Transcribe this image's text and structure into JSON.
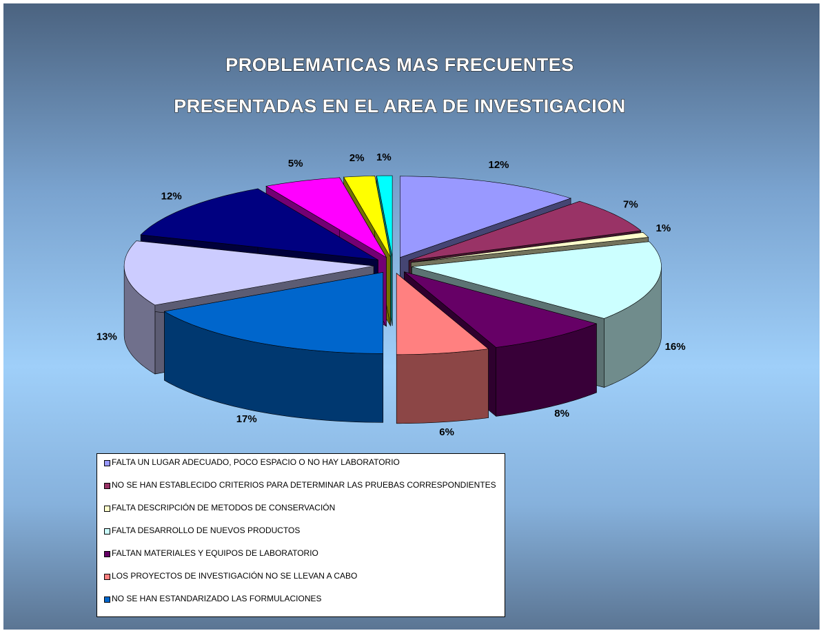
{
  "chart_data": {
    "type": "pie3d",
    "title": [
      "PROBLEMATICAS MAS FRECUENTES",
      "PRESENTADAS EN EL AREA DE INVESTIGACION"
    ],
    "categories": [
      "FALTA UN LUGAR ADECUADO, POCO ESPACIO O NO HAY LABORATORIO",
      "NO SE HAN ESTABLECIDO CRITERIOS PARA DETERMINAR LAS PRUEBAS CORRESPONDIENTES",
      "FALTA DESCRIPCIÓN DE METODOS DE CONSERVACIÓN",
      "FALTA DESARROLLO DE NUEVOS PRODUCTOS",
      "FALTAN MATERIALES Y EQUIPOS DE LABORATORIO",
      "LOS PROYECTOS DE INVESTIGACIÓN NO SE LLEVAN A CABO",
      "NO SE HAN ESTANDARIZADO LAS FORMULACIONES",
      null,
      null,
      null,
      null,
      null
    ],
    "values": [
      12,
      7,
      1,
      16,
      8,
      6,
      17,
      13,
      12,
      5,
      2,
      1
    ],
    "value_labels": [
      "12%",
      "7%",
      "1%",
      "16%",
      "8%",
      "6%",
      "17%",
      "13%",
      "12%",
      "5%",
      "2%",
      "1%"
    ],
    "colors": [
      "#9999ff",
      "#993366",
      "#ffffcc",
      "#ccffff",
      "#660066",
      "#ff8080",
      "#0066cc",
      "#ccccff",
      "#000080",
      "#ff00ff",
      "#ffff00",
      "#00ffff"
    ],
    "legend": "bottom-left"
  }
}
